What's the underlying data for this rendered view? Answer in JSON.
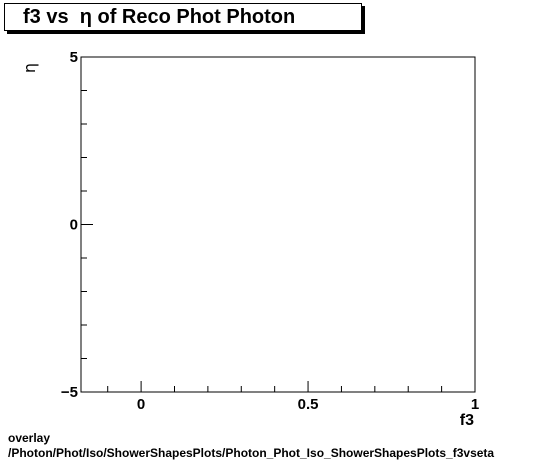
{
  "chart_data": {
    "type": "scatter",
    "title": "f3 vs  η of Reco Phot Photon",
    "xlabel": "f3",
    "ylabel": "η",
    "xlim": [
      -0.18,
      1.0
    ],
    "ylim": [
      -5,
      5
    ],
    "x_ticks": [
      {
        "value": 0,
        "label": "0"
      },
      {
        "value": 0.5,
        "label": "0.5"
      },
      {
        "value": 1,
        "label": "1"
      }
    ],
    "y_ticks": [
      {
        "value": 5,
        "label": "5"
      },
      {
        "value": 0,
        "label": "0"
      },
      {
        "value": -5,
        "label": "−5"
      }
    ],
    "grid": false,
    "legend": "none",
    "series": [],
    "colors": {
      "axis": "#000000",
      "frame": "#000000",
      "background": "#ffffff"
    }
  },
  "footer": {
    "line1": "overlay",
    "line2": "/Photon/Phot/Iso/ShowerShapesPlots/Photon_Phot_Iso_ShowerShapesPlots_f3vseta"
  }
}
